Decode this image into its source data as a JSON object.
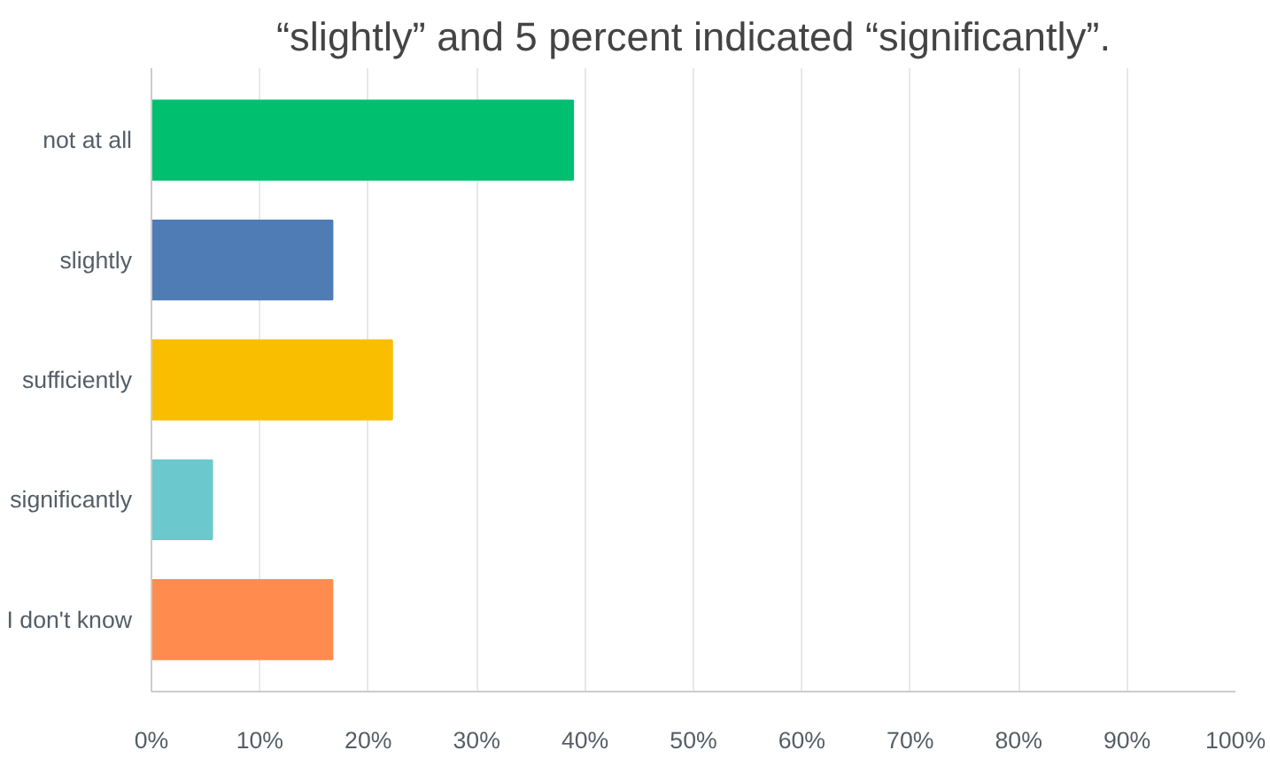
{
  "chart_data": {
    "type": "bar",
    "orientation": "horizontal",
    "title": "“slightly” and 5 percent indicated “significantly”.",
    "categories": [
      "not at all",
      "slightly",
      "sufficiently",
      "significantly",
      "I don't know"
    ],
    "values": [
      38.9,
      16.7,
      22.2,
      5.6,
      16.7
    ],
    "colors": [
      "#00bf6f",
      "#507cb6",
      "#f9be00",
      "#6bc8cd",
      "#ff8b4f"
    ],
    "xlim": [
      0,
      100
    ],
    "xticks": [
      {
        "value": 0,
        "label": "0%"
      },
      {
        "value": 10,
        "label": "10%"
      },
      {
        "value": 20,
        "label": "20%"
      },
      {
        "value": 30,
        "label": "30%"
      },
      {
        "value": 40,
        "label": "40%"
      },
      {
        "value": 50,
        "label": "50%"
      },
      {
        "value": 60,
        "label": "60%"
      },
      {
        "value": 70,
        "label": "70%"
      },
      {
        "value": 80,
        "label": "80%"
      },
      {
        "value": 90,
        "label": "90%"
      },
      {
        "value": 100,
        "label": "100%"
      }
    ],
    "grid": "x"
  }
}
